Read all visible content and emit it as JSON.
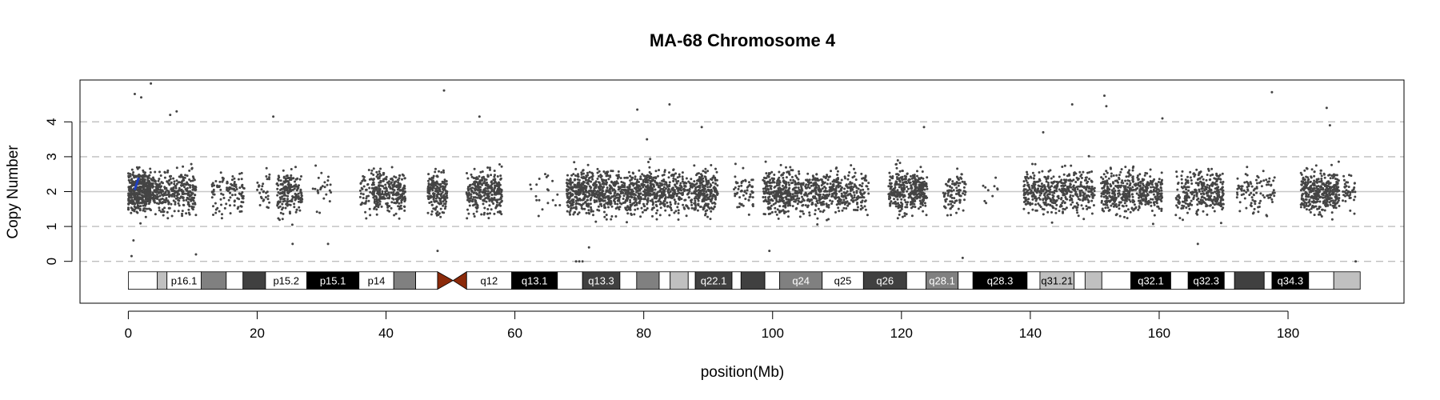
{
  "chart_data": {
    "type": "scatter",
    "title": "MA-68  Chromosome 4",
    "xlabel": "position(Mb)",
    "ylabel": "Copy Number",
    "xlim": [
      -7.5,
      198
    ],
    "ylim": [
      -1.2,
      5.2
    ],
    "x_ticks": [
      0,
      20,
      40,
      60,
      80,
      100,
      120,
      140,
      160,
      180
    ],
    "y_ticks": [
      0,
      1,
      2,
      3,
      4
    ],
    "gridlines_dashed": [
      0,
      1,
      3,
      4
    ],
    "gridline_solid": 2,
    "point_color": "#444444",
    "segment_color": "#1f3fbf",
    "centromere_color": "#8b2a0a",
    "segments": [
      {
        "x_start": 1.0,
        "x_end": 1.6,
        "y_start": 2.05,
        "y_end": 2.4
      }
    ],
    "points": {
      "baseline": 2.0,
      "clusters": [
        {
          "start": 0.0,
          "end": 3.5,
          "n": 420
        },
        {
          "start": 3.5,
          "end": 10.5,
          "n": 330
        },
        {
          "start": 13.0,
          "end": 18.0,
          "n": 110
        },
        {
          "start": 20.0,
          "end": 22.0,
          "n": 30
        },
        {
          "start": 23.0,
          "end": 27.0,
          "n": 190
        },
        {
          "start": 28.5,
          "end": 31.5,
          "n": 25
        },
        {
          "start": 36.0,
          "end": 38.0,
          "n": 50
        },
        {
          "start": 38.0,
          "end": 43.0,
          "n": 260
        },
        {
          "start": 46.5,
          "end": 49.5,
          "n": 190
        },
        {
          "start": 52.5,
          "end": 58.0,
          "n": 300
        },
        {
          "start": 62.0,
          "end": 67.0,
          "n": 20
        },
        {
          "start": 68.0,
          "end": 72.5,
          "n": 300
        },
        {
          "start": 72.5,
          "end": 78.0,
          "n": 320
        },
        {
          "start": 78.0,
          "end": 84.0,
          "n": 340
        },
        {
          "start": 84.0,
          "end": 88.0,
          "n": 150
        },
        {
          "start": 88.0,
          "end": 91.5,
          "n": 220
        },
        {
          "start": 94.0,
          "end": 97.0,
          "n": 60
        },
        {
          "start": 98.5,
          "end": 103.0,
          "n": 260
        },
        {
          "start": 103.0,
          "end": 106.0,
          "n": 120
        },
        {
          "start": 106.0,
          "end": 112.0,
          "n": 260
        },
        {
          "start": 112.0,
          "end": 115.0,
          "n": 90
        },
        {
          "start": 118.0,
          "end": 121.5,
          "n": 190
        },
        {
          "start": 121.5,
          "end": 124.0,
          "n": 160
        },
        {
          "start": 126.5,
          "end": 130.0,
          "n": 100
        },
        {
          "start": 132.5,
          "end": 135.0,
          "n": 10
        },
        {
          "start": 139.0,
          "end": 145.0,
          "n": 250
        },
        {
          "start": 145.0,
          "end": 150.0,
          "n": 200
        },
        {
          "start": 151.0,
          "end": 157.0,
          "n": 280
        },
        {
          "start": 157.0,
          "end": 160.5,
          "n": 160
        },
        {
          "start": 162.5,
          "end": 166.0,
          "n": 110
        },
        {
          "start": 166.0,
          "end": 170.0,
          "n": 200
        },
        {
          "start": 172.0,
          "end": 178.0,
          "n": 100
        },
        {
          "start": 182.0,
          "end": 188.0,
          "n": 360
        },
        {
          "start": 188.5,
          "end": 190.5,
          "n": 40
        }
      ],
      "outliers": [
        {
          "x": 1.0,
          "y": 4.8
        },
        {
          "x": 2.0,
          "y": 4.7
        },
        {
          "x": 3.5,
          "y": 5.1
        },
        {
          "x": 6.5,
          "y": 4.2
        },
        {
          "x": 7.5,
          "y": 4.3
        },
        {
          "x": 22.5,
          "y": 4.15
        },
        {
          "x": 49.0,
          "y": 4.9
        },
        {
          "x": 54.5,
          "y": 4.15
        },
        {
          "x": 79.0,
          "y": 4.35
        },
        {
          "x": 80.5,
          "y": 3.5
        },
        {
          "x": 84.0,
          "y": 4.5
        },
        {
          "x": 89.0,
          "y": 3.85
        },
        {
          "x": 123.5,
          "y": 3.85
        },
        {
          "x": 142.0,
          "y": 3.7
        },
        {
          "x": 146.5,
          "y": 4.5
        },
        {
          "x": 151.5,
          "y": 4.75
        },
        {
          "x": 151.8,
          "y": 4.45
        },
        {
          "x": 160.5,
          "y": 4.1
        },
        {
          "x": 177.5,
          "y": 4.85
        },
        {
          "x": 186.0,
          "y": 4.4
        },
        {
          "x": 186.5,
          "y": 3.9
        },
        {
          "x": 0.5,
          "y": 0.15
        },
        {
          "x": 0.8,
          "y": 0.6
        },
        {
          "x": 10.5,
          "y": 0.2
        },
        {
          "x": 25.5,
          "y": 0.5
        },
        {
          "x": 31.0,
          "y": 0.5
        },
        {
          "x": 48.0,
          "y": 0.3
        },
        {
          "x": 69.5,
          "y": 0.0
        },
        {
          "x": 70.0,
          "y": 0.0
        },
        {
          "x": 70.5,
          "y": 0.0
        },
        {
          "x": 71.5,
          "y": 0.4
        },
        {
          "x": 99.5,
          "y": 0.3
        },
        {
          "x": 129.5,
          "y": 0.1
        },
        {
          "x": 166.0,
          "y": 0.5
        },
        {
          "x": 190.5,
          "y": 0.0
        }
      ]
    },
    "ideogram": {
      "y_center": -0.55,
      "height": 0.5,
      "centromere": {
        "start": 48.0,
        "mid": 50.4,
        "end": 52.5
      },
      "bands": [
        {
          "start": 0.0,
          "end": 4.5,
          "fill": "#ffffff",
          "label": ""
        },
        {
          "start": 4.5,
          "end": 6.0,
          "fill": "#c0c0c0",
          "label": ""
        },
        {
          "start": 6.0,
          "end": 11.3,
          "fill": "#ffffff",
          "label": "p16.1"
        },
        {
          "start": 11.3,
          "end": 15.2,
          "fill": "#808080",
          "label": ""
        },
        {
          "start": 15.2,
          "end": 17.8,
          "fill": "#ffffff",
          "label": ""
        },
        {
          "start": 17.8,
          "end": 21.3,
          "fill": "#404040",
          "label": ""
        },
        {
          "start": 21.3,
          "end": 27.7,
          "fill": "#ffffff",
          "label": "p15.2"
        },
        {
          "start": 27.7,
          "end": 35.8,
          "fill": "#000000",
          "label": "p15.1"
        },
        {
          "start": 35.8,
          "end": 41.2,
          "fill": "#ffffff",
          "label": "p14"
        },
        {
          "start": 41.2,
          "end": 44.6,
          "fill": "#808080",
          "label": ""
        },
        {
          "start": 44.6,
          "end": 48.0,
          "fill": "#ffffff",
          "label": ""
        },
        {
          "start": 52.5,
          "end": 59.5,
          "fill": "#ffffff",
          "label": "q12"
        },
        {
          "start": 59.5,
          "end": 66.6,
          "fill": "#000000",
          "label": "q13.1"
        },
        {
          "start": 66.6,
          "end": 70.5,
          "fill": "#ffffff",
          "label": ""
        },
        {
          "start": 70.5,
          "end": 76.3,
          "fill": "#404040",
          "label": "q13.3"
        },
        {
          "start": 76.3,
          "end": 78.9,
          "fill": "#ffffff",
          "label": ""
        },
        {
          "start": 78.9,
          "end": 82.4,
          "fill": "#808080",
          "label": ""
        },
        {
          "start": 82.4,
          "end": 84.1,
          "fill": "#ffffff",
          "label": ""
        },
        {
          "start": 84.1,
          "end": 86.9,
          "fill": "#c0c0c0",
          "label": ""
        },
        {
          "start": 86.9,
          "end": 88.0,
          "fill": "#ffffff",
          "label": ""
        },
        {
          "start": 88.0,
          "end": 93.7,
          "fill": "#404040",
          "label": "q22.1"
        },
        {
          "start": 93.7,
          "end": 95.1,
          "fill": "#ffffff",
          "label": ""
        },
        {
          "start": 95.1,
          "end": 98.8,
          "fill": "#404040",
          "label": ""
        },
        {
          "start": 98.8,
          "end": 101.1,
          "fill": "#ffffff",
          "label": ""
        },
        {
          "start": 101.1,
          "end": 107.7,
          "fill": "#808080",
          "label": "q24"
        },
        {
          "start": 107.7,
          "end": 114.1,
          "fill": "#ffffff",
          "label": "q25"
        },
        {
          "start": 114.1,
          "end": 120.8,
          "fill": "#404040",
          "label": "q26"
        },
        {
          "start": 120.8,
          "end": 123.8,
          "fill": "#ffffff",
          "label": ""
        },
        {
          "start": 123.8,
          "end": 128.8,
          "fill": "#808080",
          "label": "q28.1"
        },
        {
          "start": 128.8,
          "end": 131.1,
          "fill": "#ffffff",
          "label": ""
        },
        {
          "start": 131.1,
          "end": 139.5,
          "fill": "#000000",
          "label": "q28.3"
        },
        {
          "start": 139.5,
          "end": 141.5,
          "fill": "#ffffff",
          "label": ""
        },
        {
          "start": 141.5,
          "end": 146.8,
          "fill": "#c0c0c0",
          "label": "q31.21"
        },
        {
          "start": 146.8,
          "end": 148.5,
          "fill": "#ffffff",
          "label": ""
        },
        {
          "start": 148.5,
          "end": 151.1,
          "fill": "#c0c0c0",
          "label": ""
        },
        {
          "start": 151.1,
          "end": 155.6,
          "fill": "#ffffff",
          "label": ""
        },
        {
          "start": 155.6,
          "end": 161.8,
          "fill": "#000000",
          "label": "q32.1"
        },
        {
          "start": 161.8,
          "end": 164.5,
          "fill": "#ffffff",
          "label": ""
        },
        {
          "start": 164.5,
          "end": 170.1,
          "fill": "#000000",
          "label": "q32.3"
        },
        {
          "start": 170.1,
          "end": 171.7,
          "fill": "#ffffff",
          "label": ""
        },
        {
          "start": 171.7,
          "end": 176.3,
          "fill": "#404040",
          "label": ""
        },
        {
          "start": 176.3,
          "end": 177.5,
          "fill": "#ffffff",
          "label": ""
        },
        {
          "start": 177.5,
          "end": 183.2,
          "fill": "#000000",
          "label": "q34.3"
        },
        {
          "start": 183.2,
          "end": 187.1,
          "fill": "#ffffff",
          "label": ""
        },
        {
          "start": 187.1,
          "end": 191.2,
          "fill": "#c0c0c0",
          "label": ""
        }
      ]
    }
  }
}
